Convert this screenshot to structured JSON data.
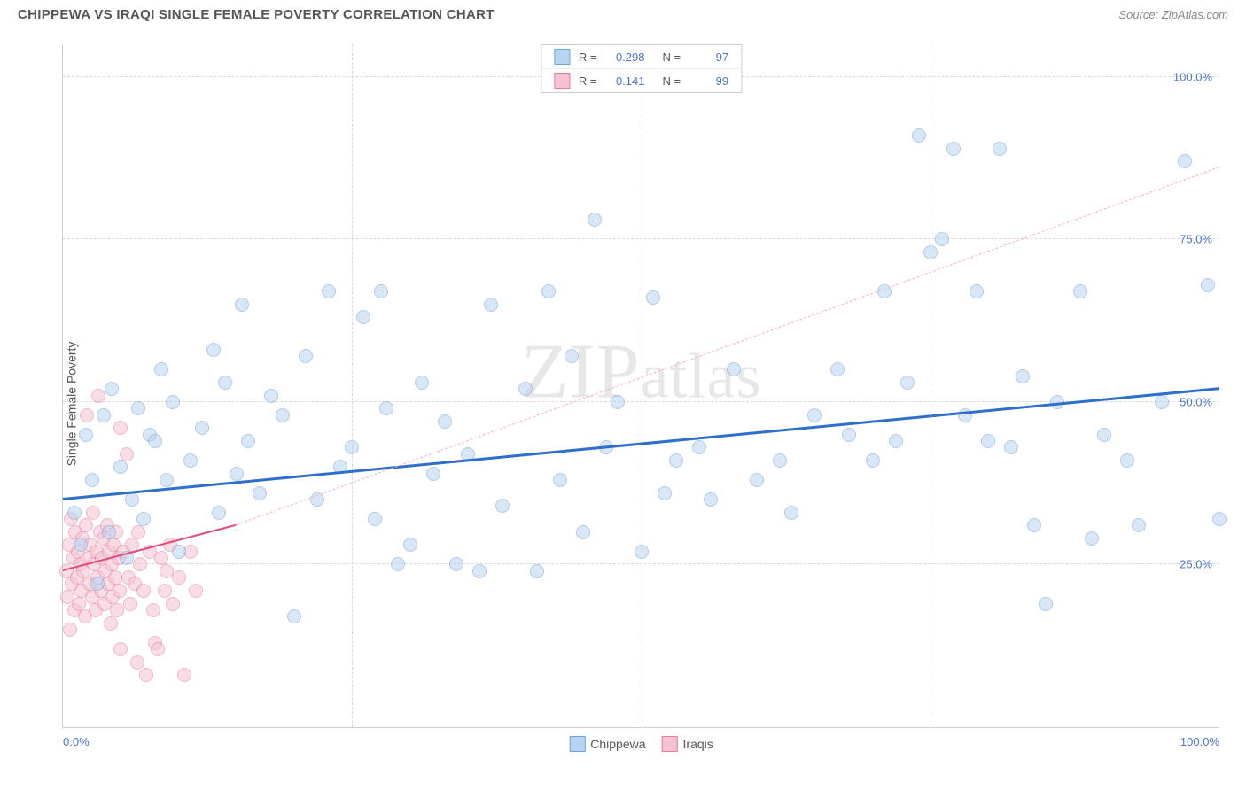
{
  "title": "CHIPPEWA VS IRAQI SINGLE FEMALE POVERTY CORRELATION CHART",
  "source_label": "Source: ZipAtlas.com",
  "ylabel": "Single Female Poverty",
  "watermark": "ZIPatlas",
  "chart": {
    "type": "scatter",
    "xlim": [
      0,
      100
    ],
    "ylim": [
      0,
      105
    ],
    "x_ticks": [
      0,
      25,
      50,
      75,
      100
    ],
    "x_tick_labels": [
      "0.0%",
      "",
      "",
      "",
      "100.0%"
    ],
    "y_ticks": [
      25,
      50,
      75,
      100
    ],
    "y_tick_labels": [
      "25.0%",
      "50.0%",
      "75.0%",
      "100.0%"
    ],
    "grid_color": "#d8d8d8",
    "axis_color": "#cccccc",
    "background_color": "#ffffff",
    "tick_label_color": "#4a74c9"
  },
  "series": {
    "chippewa": {
      "label": "Chippewa",
      "color_fill": "#b9d4f0",
      "color_stroke": "#6fa3db",
      "R": "0.298",
      "N": "97",
      "trend": {
        "x1": 0,
        "y1": 35,
        "x2": 100,
        "y2": 52,
        "color": "#2e6fc9",
        "width": 2.5
      },
      "points": [
        [
          1,
          33
        ],
        [
          1.5,
          28
        ],
        [
          2,
          45
        ],
        [
          2.5,
          38
        ],
        [
          3,
          22
        ],
        [
          3.5,
          48
        ],
        [
          4,
          30
        ],
        [
          4.2,
          52
        ],
        [
          5,
          40
        ],
        [
          5.5,
          26
        ],
        [
          6,
          35
        ],
        [
          6.5,
          49
        ],
        [
          7,
          32
        ],
        [
          7.5,
          45
        ],
        [
          8,
          44
        ],
        [
          8.5,
          55
        ],
        [
          9,
          38
        ],
        [
          9.5,
          50
        ],
        [
          10,
          27
        ],
        [
          11,
          41
        ],
        [
          12,
          46
        ],
        [
          13,
          58
        ],
        [
          13.5,
          33
        ],
        [
          14,
          53
        ],
        [
          15,
          39
        ],
        [
          15.5,
          65
        ],
        [
          16,
          44
        ],
        [
          17,
          36
        ],
        [
          18,
          51
        ],
        [
          19,
          48
        ],
        [
          20,
          17
        ],
        [
          21,
          57
        ],
        [
          22,
          35
        ],
        [
          23,
          67
        ],
        [
          24,
          40
        ],
        [
          25,
          43
        ],
        [
          26,
          63
        ],
        [
          27,
          32
        ],
        [
          27.5,
          67
        ],
        [
          28,
          49
        ],
        [
          29,
          25
        ],
        [
          30,
          28
        ],
        [
          31,
          53
        ],
        [
          32,
          39
        ],
        [
          33,
          47
        ],
        [
          34,
          25
        ],
        [
          35,
          42
        ],
        [
          36,
          24
        ],
        [
          37,
          65
        ],
        [
          38,
          34
        ],
        [
          40,
          52
        ],
        [
          41,
          24
        ],
        [
          42,
          67
        ],
        [
          43,
          38
        ],
        [
          44,
          57
        ],
        [
          45,
          30
        ],
        [
          46,
          78
        ],
        [
          47,
          43
        ],
        [
          48,
          50
        ],
        [
          50,
          27
        ],
        [
          51,
          66
        ],
        [
          52,
          36
        ],
        [
          53,
          41
        ],
        [
          55,
          43
        ],
        [
          56,
          35
        ],
        [
          58,
          55
        ],
        [
          60,
          38
        ],
        [
          62,
          41
        ],
        [
          63,
          33
        ],
        [
          65,
          48
        ],
        [
          67,
          55
        ],
        [
          68,
          45
        ],
        [
          70,
          41
        ],
        [
          71,
          67
        ],
        [
          72,
          44
        ],
        [
          73,
          53
        ],
        [
          74,
          91
        ],
        [
          75,
          73
        ],
        [
          76,
          75
        ],
        [
          77,
          89
        ],
        [
          78,
          48
        ],
        [
          79,
          67
        ],
        [
          80,
          44
        ],
        [
          81,
          89
        ],
        [
          82,
          43
        ],
        [
          83,
          54
        ],
        [
          84,
          31
        ],
        [
          85,
          19
        ],
        [
          86,
          50
        ],
        [
          88,
          67
        ],
        [
          89,
          29
        ],
        [
          90,
          45
        ],
        [
          92,
          41
        ],
        [
          93,
          31
        ],
        [
          95,
          50
        ],
        [
          97,
          87
        ],
        [
          99,
          68
        ],
        [
          100,
          32
        ]
      ]
    },
    "iraqis": {
      "label": "Iraqis",
      "color_fill": "#f5c2d1",
      "color_stroke": "#e97ba1",
      "R": "0.141",
      "N": "99",
      "trend": {
        "x1": 0,
        "y1": 24,
        "x2": 15,
        "y2": 31,
        "color": "#e34b7c",
        "width": 2
      },
      "trend_extrapolate": {
        "x1": 15,
        "y1": 31,
        "x2": 100,
        "y2": 86,
        "color": "#f3b0c3"
      },
      "points": [
        [
          0.3,
          24
        ],
        [
          0.4,
          20
        ],
        [
          0.5,
          28
        ],
        [
          0.6,
          15
        ],
        [
          0.7,
          32
        ],
        [
          0.8,
          22
        ],
        [
          0.9,
          26
        ],
        [
          1.0,
          18
        ],
        [
          1.1,
          30
        ],
        [
          1.2,
          23
        ],
        [
          1.3,
          27
        ],
        [
          1.4,
          19
        ],
        [
          1.5,
          25
        ],
        [
          1.6,
          21
        ],
        [
          1.7,
          29
        ],
        [
          1.8,
          24
        ],
        [
          1.9,
          17
        ],
        [
          2.0,
          31
        ],
        [
          2.1,
          48
        ],
        [
          2.2,
          26
        ],
        [
          2.3,
          22
        ],
        [
          2.4,
          28
        ],
        [
          2.5,
          20
        ],
        [
          2.6,
          33
        ],
        [
          2.7,
          25
        ],
        [
          2.8,
          18
        ],
        [
          2.9,
          27
        ],
        [
          3.0,
          23
        ],
        [
          3.1,
          51
        ],
        [
          3.2,
          30
        ],
        [
          3.3,
          21
        ],
        [
          3.4,
          26
        ],
        [
          3.5,
          29
        ],
        [
          3.6,
          19
        ],
        [
          3.7,
          24
        ],
        [
          3.8,
          31
        ],
        [
          3.9,
          22
        ],
        [
          4.0,
          27
        ],
        [
          4.1,
          16
        ],
        [
          4.2,
          25
        ],
        [
          4.3,
          20
        ],
        [
          4.4,
          28
        ],
        [
          4.5,
          23
        ],
        [
          4.6,
          30
        ],
        [
          4.7,
          18
        ],
        [
          4.8,
          26
        ],
        [
          4.9,
          21
        ],
        [
          5.0,
          12
        ],
        [
          5.0,
          46
        ],
        [
          5.2,
          27
        ],
        [
          5.5,
          42
        ],
        [
          5.7,
          23
        ],
        [
          5.8,
          19
        ],
        [
          6.0,
          28
        ],
        [
          6.2,
          22
        ],
        [
          6.4,
          10
        ],
        [
          6.5,
          30
        ],
        [
          6.7,
          25
        ],
        [
          7.0,
          21
        ],
        [
          7.2,
          8
        ],
        [
          7.5,
          27
        ],
        [
          7.8,
          18
        ],
        [
          8.0,
          13
        ],
        [
          8.2,
          12
        ],
        [
          8.5,
          26
        ],
        [
          8.8,
          21
        ],
        [
          9.0,
          24
        ],
        [
          9.3,
          28
        ],
        [
          9.5,
          19
        ],
        [
          10,
          23
        ],
        [
          10.5,
          8
        ],
        [
          11,
          27
        ],
        [
          11.5,
          21
        ]
      ]
    }
  },
  "legend_top": [
    {
      "series": "chippewa"
    },
    {
      "series": "iraqis"
    }
  ],
  "legend_bottom": [
    {
      "series": "chippewa"
    },
    {
      "series": "iraqis"
    }
  ]
}
